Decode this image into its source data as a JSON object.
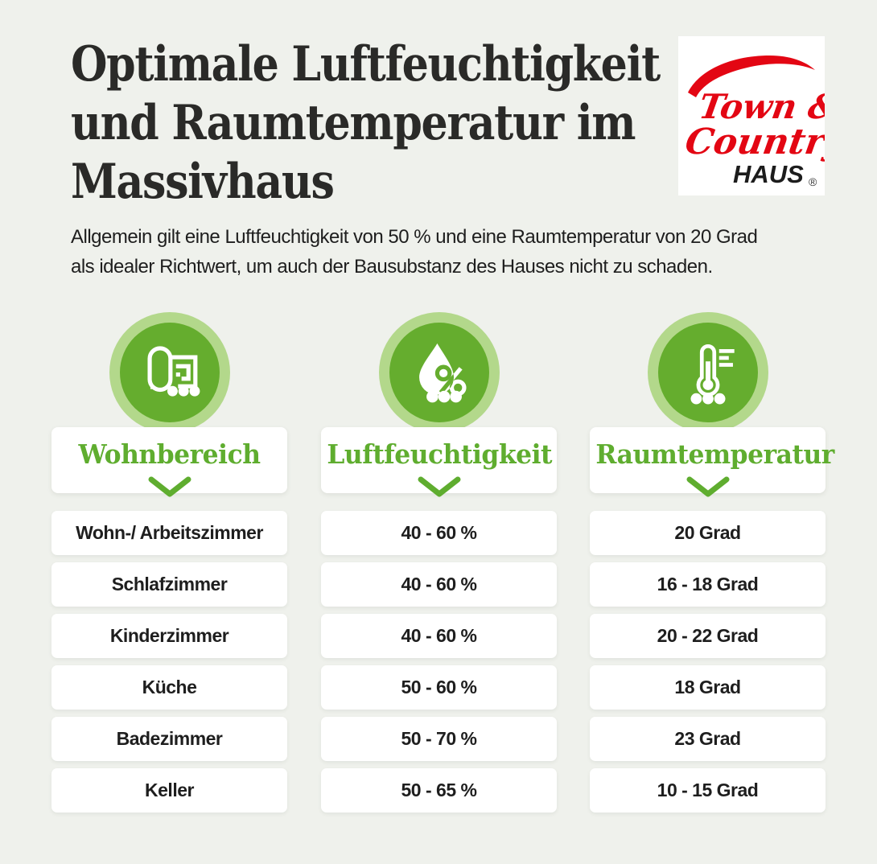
{
  "page": {
    "background": "#eff1ec"
  },
  "header": {
    "title_lines": [
      "Optimale Luftfeuchtigkeit",
      "und Raumtemperatur im",
      "Massivhaus"
    ],
    "subtitle_lines": [
      "Allgemein gilt eine Luftfeuchtigkeit von 50 % und eine Raumtemperatur von 20 Grad",
      "als idealer Richtwert, um auch der Bausubstanz des Hauses nicht zu schaden."
    ]
  },
  "logo": {
    "line1": "Town &",
    "line2": "Country",
    "line3": "HAUS",
    "registered": "®",
    "red": "#e30613",
    "black": "#1c1c1c"
  },
  "colors": {
    "accent_green": "#65ad2e",
    "light_green_ring": "#b3d88b",
    "header_text_green": "#5fad2f",
    "title_color": "#2a2a28",
    "body_text": "#1e1e1e",
    "card_white": "#ffffff",
    "page_background": "#eff1ec"
  },
  "columns": [
    {
      "label": "Wohnbereich",
      "icon": "floor-plan-icon"
    },
    {
      "label": "Luftfeuchtigkeit",
      "icon": "humidity-drop-icon"
    },
    {
      "label": "Raumtemperatur",
      "icon": "thermometer-icon"
    }
  ],
  "table": {
    "rows": [
      {
        "room": "Wohn-/ Arbeitszimmer",
        "humidity": "40 - 60 %",
        "temperature": "20 Grad"
      },
      {
        "room": "Schlafzimmer",
        "humidity": "40 - 60 %",
        "temperature": "16 - 18 Grad"
      },
      {
        "room": "Kinderzimmer",
        "humidity": "40 - 60 %",
        "temperature": "20 - 22 Grad"
      },
      {
        "room": "Küche",
        "humidity": "50 - 60 %",
        "temperature": "18 Grad"
      },
      {
        "room": "Badezimmer",
        "humidity": "50 - 70 %",
        "temperature": "23 Grad"
      },
      {
        "room": "Keller",
        "humidity": "50 - 65 %",
        "temperature": "10 - 15 Grad"
      }
    ]
  },
  "chart_data": {
    "type": "table",
    "title": "Optimale Luftfeuchtigkeit und Raumtemperatur im Massivhaus",
    "columns": [
      "Wohnbereich",
      "Luftfeuchtigkeit",
      "Raumtemperatur"
    ],
    "rows": [
      [
        "Wohn-/ Arbeitszimmer",
        "40 - 60 %",
        "20 Grad"
      ],
      [
        "Schlafzimmer",
        "40 - 60 %",
        "16 - 18 Grad"
      ],
      [
        "Kinderzimmer",
        "40 - 60 %",
        "20 - 22 Grad"
      ],
      [
        "Küche",
        "50 - 60 %",
        "18 Grad"
      ],
      [
        "Badezimmer",
        "50 - 70 %",
        "23 Grad"
      ],
      [
        "Keller",
        "50 - 65 %",
        "10 - 15 Grad"
      ]
    ]
  }
}
